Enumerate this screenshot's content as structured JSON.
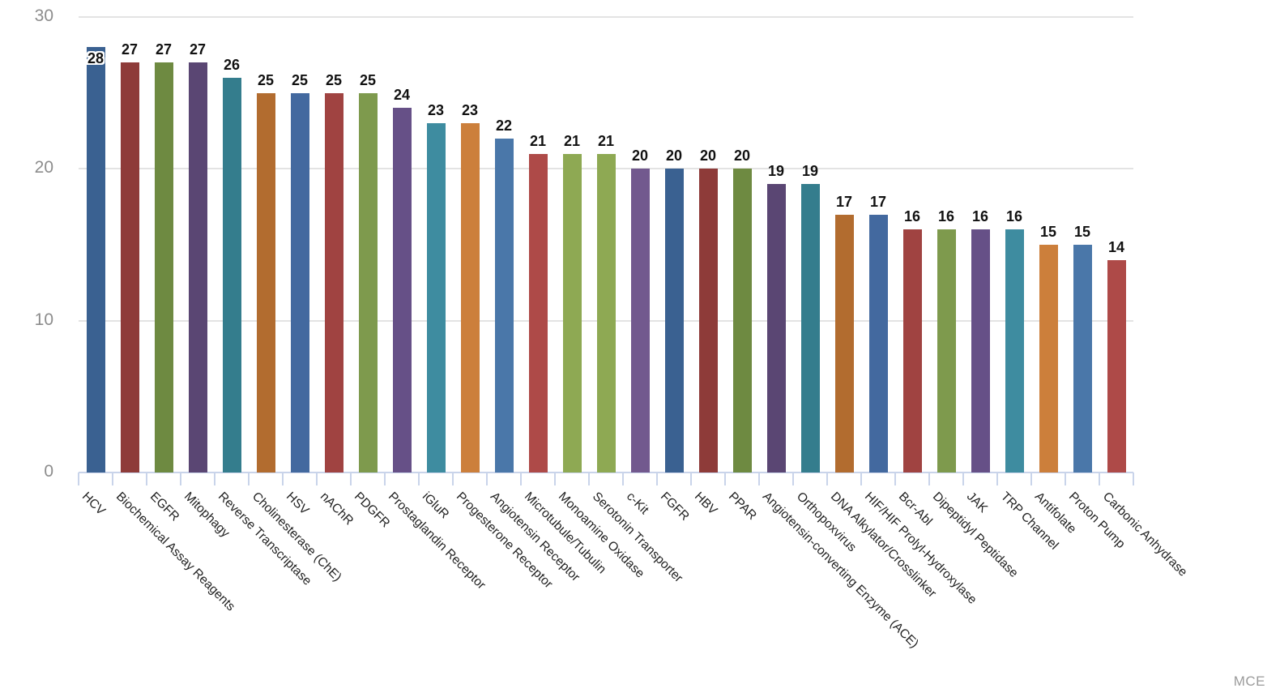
{
  "chart_data": {
    "type": "bar",
    "title": "",
    "xlabel": "",
    "ylabel": "",
    "categories": [
      "HCV",
      "Biochemical Assay Reagents",
      "EGFR",
      "Mitophagy",
      "Reverse Transcriptase",
      "Cholinesterase (ChE)",
      "HSV",
      "nAChR",
      "PDGFR",
      "Prostaglandin Receptor",
      "iGluR",
      "Progesterone Receptor",
      "Angiotensin Receptor",
      "Microtubule/Tubulin",
      "Monoamine Oxidase",
      "Serotonin Transporter",
      "c-Kit",
      "FGFR",
      "HBV",
      "PPAR",
      "Angiotensin-converting Enzyme (ACE)",
      "Orthopoxvirus",
      "DNA Alkylator/Crosslinker",
      "HIF/HIF Prolyl-Hydroxylase",
      "Bcr-Abl",
      "Dipeptidyl Peptidase",
      "JAK",
      "TRP Channel",
      "Antifolate",
      "Proton Pump",
      "Carbonic Anhydrase"
    ],
    "values": [
      28,
      27,
      27,
      27,
      26,
      25,
      25,
      25,
      25,
      24,
      23,
      23,
      22,
      21,
      21,
      21,
      20,
      20,
      20,
      20,
      19,
      19,
      17,
      17,
      16,
      16,
      16,
      16,
      15,
      15,
      14
    ],
    "colors": [
      "#3a6191",
      "#8e3b39",
      "#6e8a41",
      "#5a4673",
      "#347d8d",
      "#b26c2f",
      "#43699f",
      "#a04341",
      "#7e9a4d",
      "#665087",
      "#3e8ca0",
      "#cc7f3b",
      "#4a77a9",
      "#ae4a48",
      "#8ea953",
      "#8ea953",
      "#72598e",
      "#3a6191",
      "#8e3b39",
      "#6e8a41",
      "#5a4673",
      "#347d8d",
      "#b26c2f",
      "#43699f",
      "#a04341",
      "#7e9a4d",
      "#665087",
      "#3e8ca0",
      "#cc7f3b",
      "#4a77a9",
      "#ae4a48"
    ],
    "ylim": [
      0,
      30
    ],
    "yticks": [
      0,
      10,
      20,
      30
    ],
    "grid": "horizontal",
    "legend": "none",
    "value_labels": "shown above each bar in bold black; first bar's label drawn inside bar top with white halo",
    "first_label_inside": true,
    "x_label_rotation_deg": 45
  },
  "watermark": "MCE",
  "style": {
    "background": "#ffffff",
    "gridline_color": "#e3e3e3",
    "axis_line_color": "#c9d4ea",
    "ytick_label_color": "#8c8c8c",
    "category_label_color": "#222222",
    "value_label_color": "#111111",
    "watermark_color": "#9b9b9b"
  }
}
